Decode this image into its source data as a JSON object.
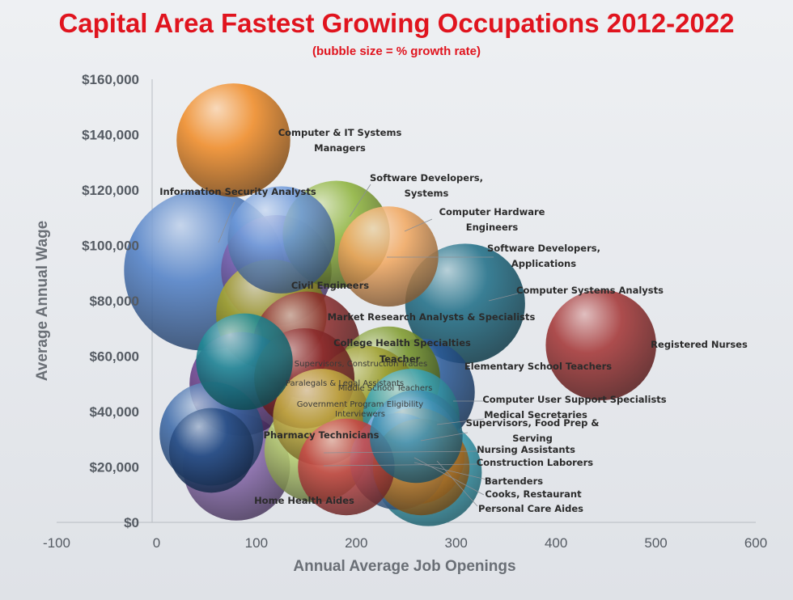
{
  "chart_data": {
    "type": "bubble",
    "title": "Capital Area Fastest Growing Occupations 2012-2022",
    "subtitle": "(bubble size = % growth rate)",
    "xlabel": "Annual Average Job Openings",
    "ylabel": "Average Annual Wage",
    "xlim": [
      -100,
      600
    ],
    "ylim": [
      0,
      160000
    ],
    "x_ticks": [
      "-100",
      "0",
      "100",
      "200",
      "300",
      "400",
      "500",
      "600"
    ],
    "y_ticks": [
      "$0",
      "$20,000",
      "$40,000",
      "$60,000",
      "$80,000",
      "$100,000",
      "$120,000",
      "$140,000",
      "$160,000"
    ],
    "grid": false,
    "legend": "none",
    "points": [
      {
        "name": "Information Security Analysts",
        "x": 48,
        "y": 91000,
        "size": 36,
        "color": "#4f7fc6"
      },
      {
        "name": "Computer & IT Systems Managers",
        "x": 77,
        "y": 138000,
        "size": 18,
        "color": "#f08a24"
      },
      {
        "name": "Software Developers, Systems",
        "x": 180,
        "y": 104000,
        "size": 16,
        "color": "#8db33a"
      },
      {
        "name": "Computer Hardware Engineers",
        "x": 232,
        "y": 96000,
        "size": 14,
        "color": "#f2a860"
      },
      {
        "name": "Software Developers, Applications",
        "x": 125,
        "y": 102000,
        "size": 16,
        "color": "#6c98d9"
      },
      {
        "name": "Civil Engineers",
        "x": 120,
        "y": 91000,
        "size": 17,
        "color": "#7e62ae"
      },
      {
        "name": "Computer Systems Analysts",
        "x": 309,
        "y": 79000,
        "size": 20,
        "color": "#1d6d86"
      },
      {
        "name": "Market Research Analysts & Specialists",
        "x": 115,
        "y": 75000,
        "size": 17,
        "color": "#a8a428"
      },
      {
        "name": "College Health Specialties Teacher",
        "x": 150,
        "y": 64000,
        "size": 16,
        "color": "#8c2b2b"
      },
      {
        "name": "Registered Nurses",
        "x": 445,
        "y": 64000,
        "size": 17,
        "color": "#a33333"
      },
      {
        "name": "Elementary School Teachers",
        "x": 265,
        "y": 47000,
        "size": 16,
        "color": "#2a5a99"
      },
      {
        "name": "Computer User Support Specialists",
        "x": 232,
        "y": 52000,
        "size": 15,
        "color": "#7e9a2a"
      },
      {
        "name": "Supervisors, Construction Trades",
        "x": 148,
        "y": 52000,
        "size": 14,
        "color": "#8c2b2b"
      },
      {
        "name": "Paralegals & Legal Assistants",
        "x": 85,
        "y": 50000,
        "size": 15,
        "color": "#6b3f8f"
      },
      {
        "name": "Middle School Teachers",
        "x": 210,
        "y": 45000,
        "size": 15,
        "color": "#a0a030"
      },
      {
        "name": "Government Program Eligibility Interviewers",
        "x": 165,
        "y": 38000,
        "size": 13,
        "color": "#c8b045"
      },
      {
        "name": "Medical Secretaries",
        "x": 255,
        "y": 38000,
        "size": 13,
        "color": "#3aa5b8"
      },
      {
        "name": "Supervisors, Food Prep & Serving",
        "x": 260,
        "y": 31000,
        "size": 12,
        "color": "#3b8fb0"
      },
      {
        "name": "Pharmacy Technicians",
        "x": 55,
        "y": 32000,
        "size": 15,
        "color": "#3a68a8"
      },
      {
        "name": "Nursing Assistants",
        "x": 255,
        "y": 28000,
        "size": 13,
        "color": "#7aaee0"
      },
      {
        "name": "Construction Laborers",
        "x": 260,
        "y": 24000,
        "size": 13,
        "color": "#f0a040"
      },
      {
        "name": "Bartenders",
        "x": 242,
        "y": 22000,
        "size": 13,
        "color": "#5a8fd0"
      },
      {
        "name": "Cooks, Restaurant",
        "x": 265,
        "y": 20000,
        "size": 13,
        "color": "#d08a30"
      },
      {
        "name": "Personal Care Aides",
        "x": 272,
        "y": 18000,
        "size": 16,
        "color": "#3ab0c8"
      },
      {
        "name": "Home Health Aides",
        "x": 80,
        "y": 20000,
        "size": 16,
        "color": "#8a6ab0"
      },
      {
        "name": "Bubble (pale green)",
        "x": 160,
        "y": 26000,
        "size": 15,
        "color": "#b8d070"
      },
      {
        "name": "Bubble (red lower)",
        "x": 190,
        "y": 20000,
        "size": 13,
        "color": "#c84848"
      },
      {
        "name": "Bubble (teal)",
        "x": 88,
        "y": 58000,
        "size": 13,
        "color": "#1d8a96"
      },
      {
        "name": "Bubble (dark blue)",
        "x": 55,
        "y": 26000,
        "size": 10,
        "color": "#2a4f86"
      }
    ],
    "labels": [
      {
        "lines": [
          "Computer & IT Systems",
          "Managers"
        ]
      },
      {
        "lines": [
          "Information Security Analysts"
        ]
      },
      {
        "lines": [
          "Software Developers,",
          "Systems"
        ]
      },
      {
        "lines": [
          "Computer Hardware",
          "Engineers"
        ]
      },
      {
        "lines": [
          "Software Developers,",
          "Applications"
        ]
      },
      {
        "lines": [
          "Civil Engineers"
        ]
      },
      {
        "lines": [
          "Computer Systems Analysts"
        ]
      },
      {
        "lines": [
          "Market Research Analysts & Specialists"
        ]
      },
      {
        "lines": [
          "College Health Specialties"
        ]
      },
      {
        "lines": [
          "Teacher"
        ]
      },
      {
        "lines": [
          "Registered Nurses"
        ]
      },
      {
        "lines": [
          "Elementary  School Teachers"
        ]
      },
      {
        "lines": [
          "Supervisors, Construction Trades"
        ]
      },
      {
        "lines": [
          "Paralegals & Legal Assistants"
        ]
      },
      {
        "lines": [
          "Middle School Teachers"
        ]
      },
      {
        "lines": [
          "Computer User Support Specialists"
        ]
      },
      {
        "lines": [
          "Government Program Eligibility",
          "Interviewers"
        ]
      },
      {
        "lines": [
          "Medical Secretaries"
        ]
      },
      {
        "lines": [
          "Supervisors, Food Prep &",
          "Serving"
        ]
      },
      {
        "lines": [
          "Pharmacy Technicians"
        ]
      },
      {
        "lines": [
          "Nursing Assistants"
        ]
      },
      {
        "lines": [
          "Construction Laborers"
        ]
      },
      {
        "lines": [
          "Bartenders"
        ]
      },
      {
        "lines": [
          "Cooks, Restaurant"
        ]
      },
      {
        "lines": [
          "Personal Care Aides"
        ]
      },
      {
        "lines": [
          "Home Health Aides"
        ]
      }
    ]
  }
}
